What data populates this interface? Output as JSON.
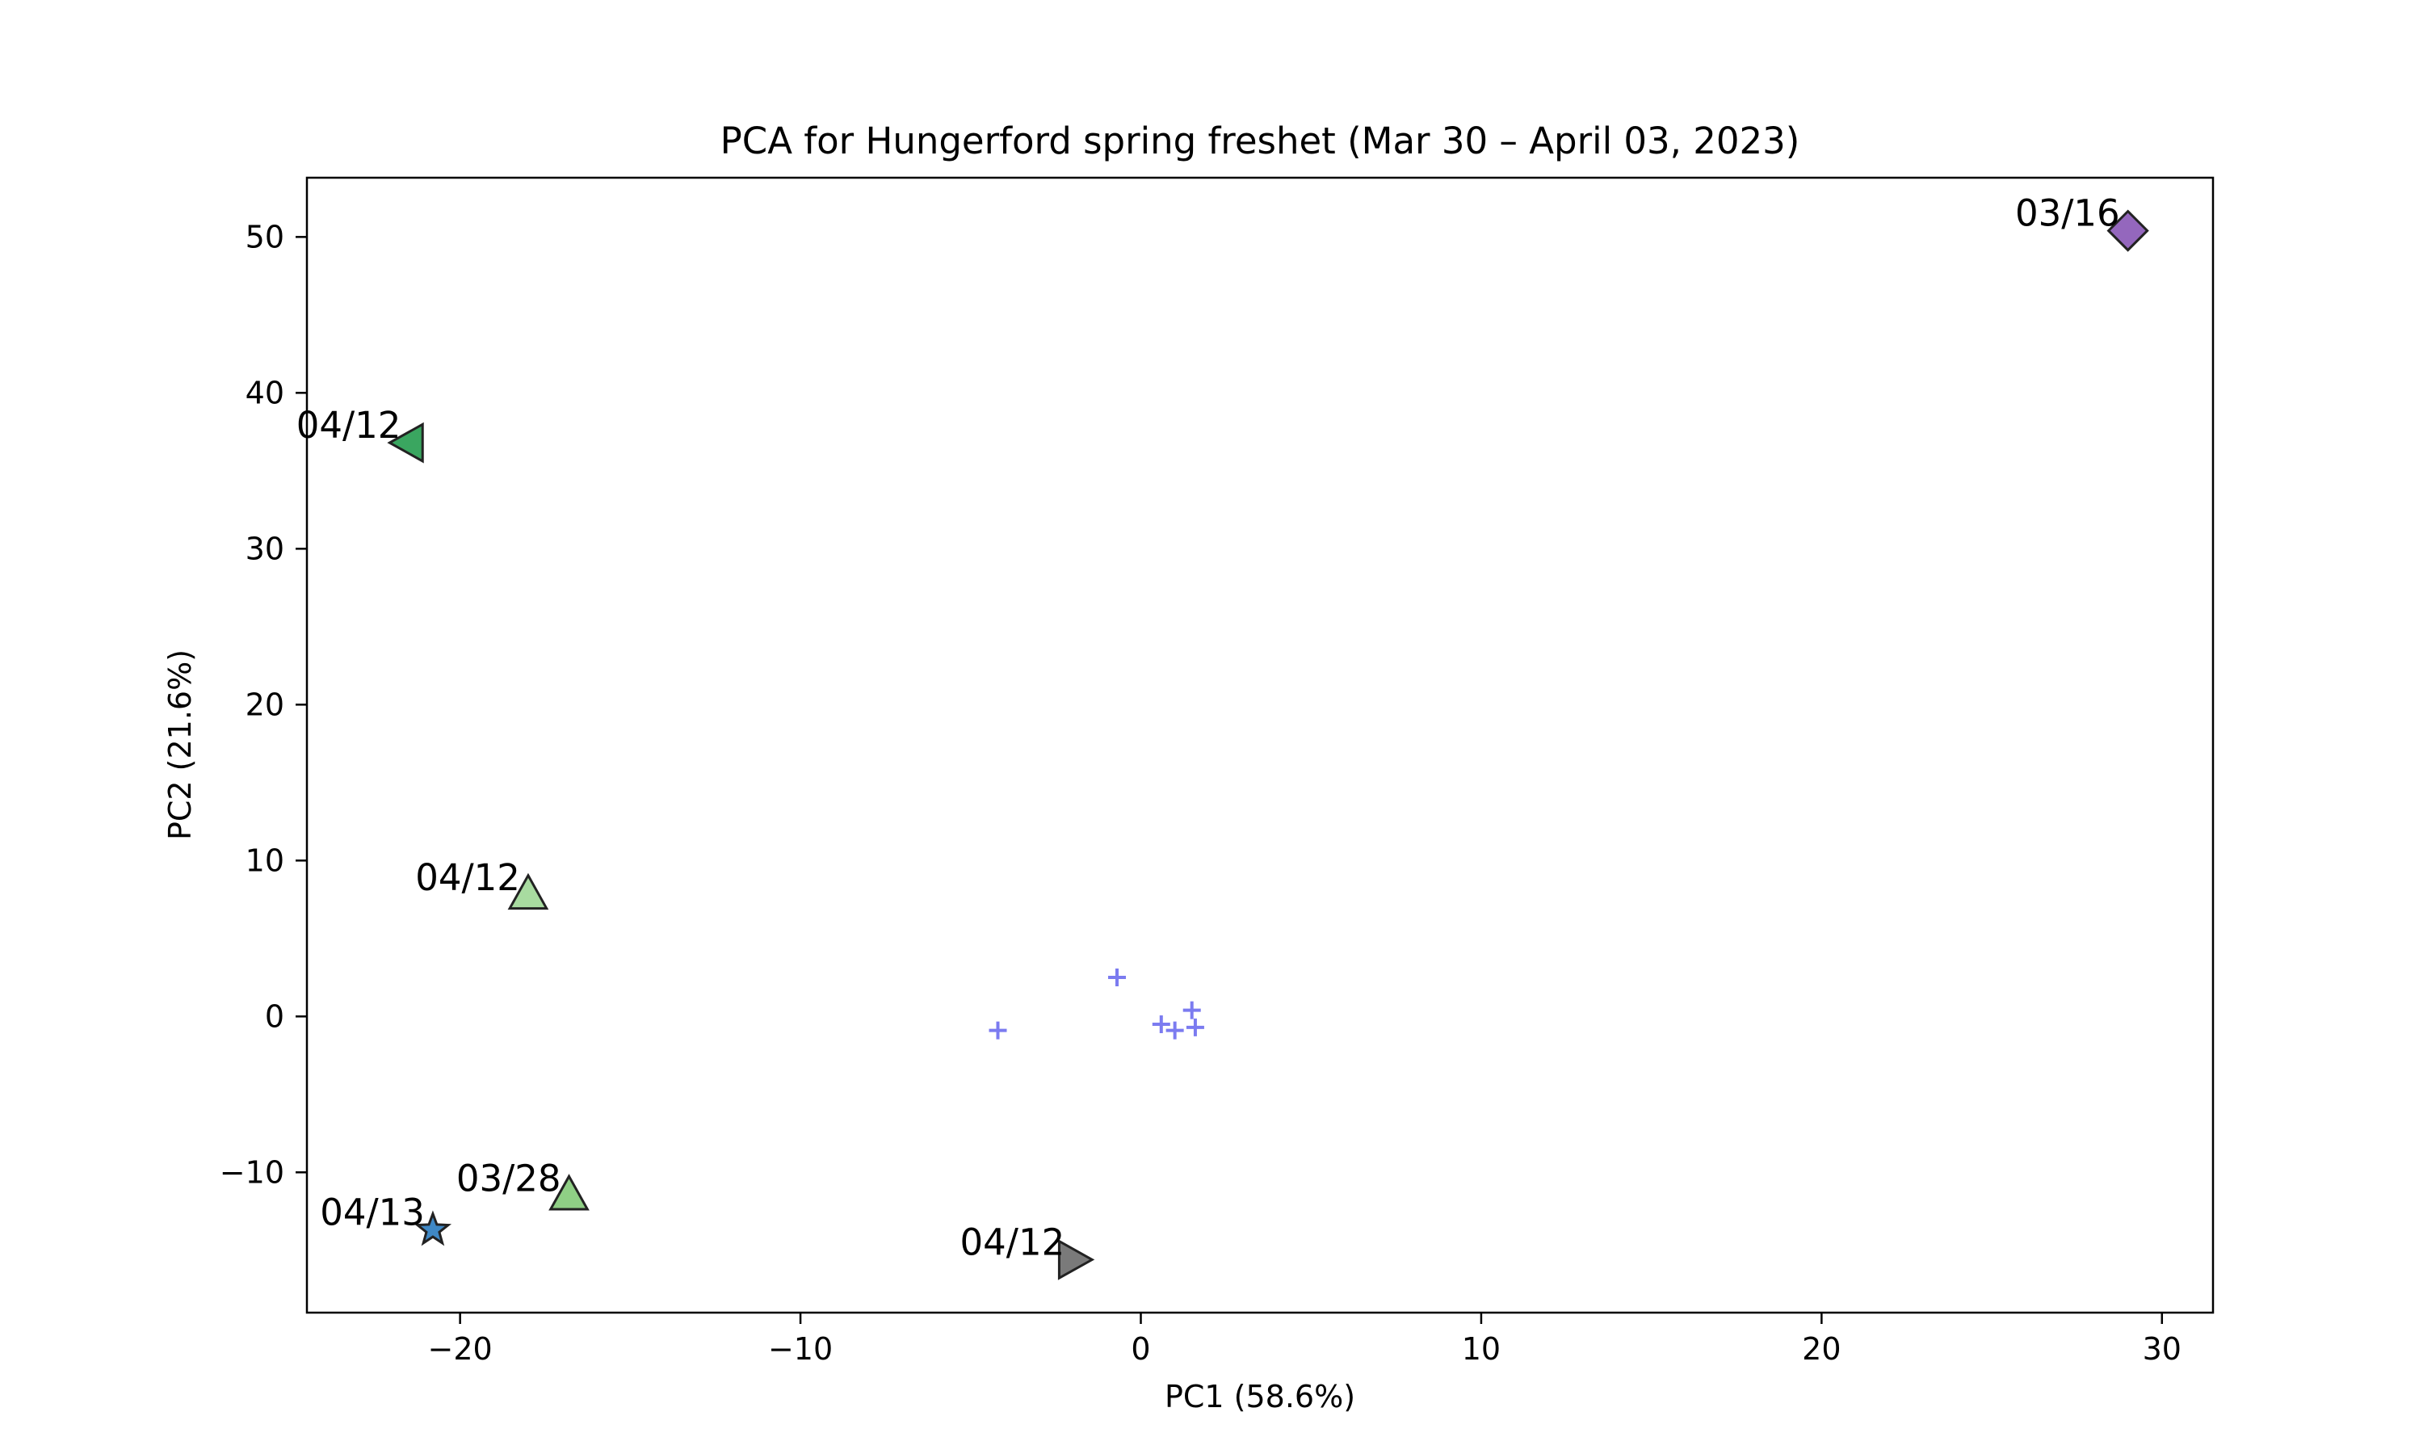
{
  "chart_data": {
    "type": "scatter",
    "title": "PCA for Hungerford spring freshet (Mar 30 – April 03, 2023)",
    "xlabel": "PC1 (58.6%)",
    "ylabel": "PC2 (21.6%)",
    "xlim": [
      -24.5,
      31.5
    ],
    "ylim": [
      -19,
      53.8
    ],
    "xticks": [
      -20,
      -10,
      0,
      10,
      20,
      30
    ],
    "xtick_labels": [
      "−20",
      "−10",
      "0",
      "10",
      "20",
      "30"
    ],
    "yticks": [
      -10,
      0,
      10,
      20,
      30,
      40,
      50
    ],
    "ytick_labels": [
      "−10",
      "0",
      "10",
      "20",
      "30",
      "40",
      "50"
    ],
    "grid": false,
    "labeled_points": [
      {
        "x": 29.0,
        "y": 50.4,
        "label": "03/16",
        "marker": "diamond",
        "color": "#9467bd"
      },
      {
        "x": -21.5,
        "y": 36.8,
        "label": "04/12",
        "marker": "triangle-left",
        "color": "#3aa660"
      },
      {
        "x": -18.0,
        "y": 7.8,
        "label": "04/12",
        "marker": "triangle-up",
        "color": "#a8dba0"
      },
      {
        "x": -16.8,
        "y": -11.5,
        "label": "03/28",
        "marker": "triangle-up",
        "color": "#8fcf85"
      },
      {
        "x": -20.8,
        "y": -13.7,
        "label": "04/13",
        "marker": "star",
        "color": "#3f88c5"
      },
      {
        "x": -2.0,
        "y": -15.6,
        "label": "04/12",
        "marker": "triangle-right",
        "color": "#7a7a7a"
      }
    ],
    "unlabeled_points": {
      "marker": "plus",
      "color": "#7b7bf0",
      "points": [
        {
          "x": -0.7,
          "y": 2.5
        },
        {
          "x": -4.2,
          "y": -0.9
        },
        {
          "x": 0.6,
          "y": -0.5
        },
        {
          "x": 1.0,
          "y": -0.9
        },
        {
          "x": 1.5,
          "y": 0.4
        },
        {
          "x": 1.6,
          "y": -0.7
        }
      ]
    }
  }
}
